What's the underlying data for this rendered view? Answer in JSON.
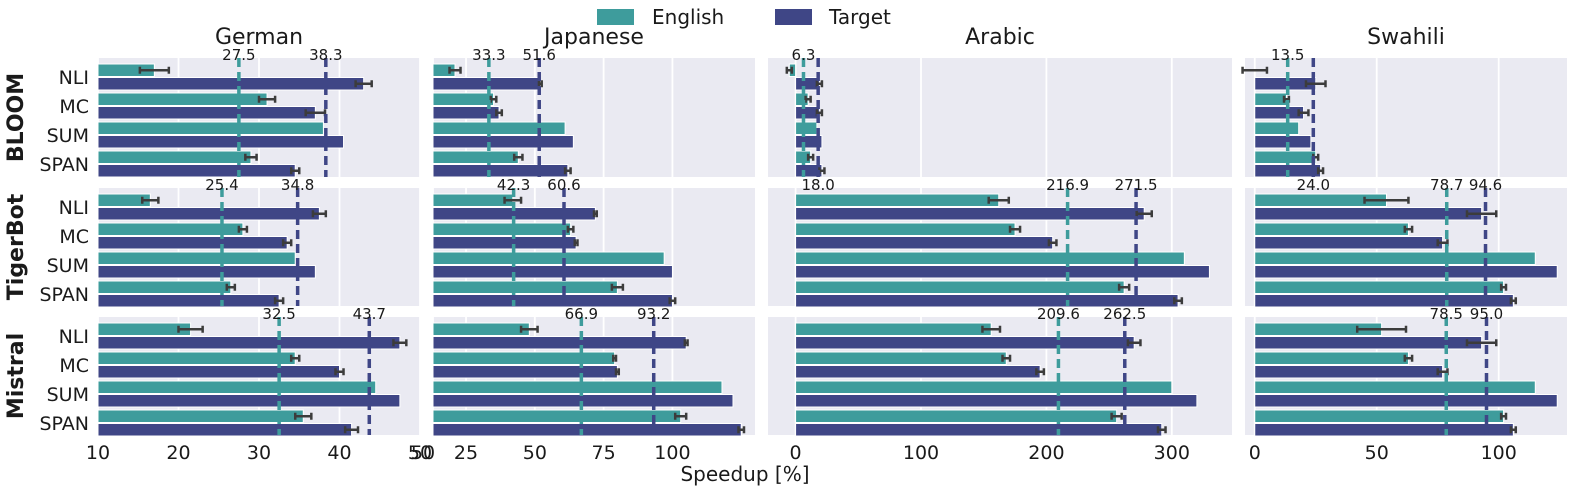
{
  "legend": {
    "items": [
      {
        "label": "English",
        "color": "#3e9c9c"
      },
      {
        "label": "Target",
        "color": "#3f4686"
      }
    ],
    "placement": "top-center"
  },
  "xlabel": "Speedup [%]",
  "chart_data": {
    "type": "bar",
    "orientation": "horizontal",
    "grid": true,
    "xlabel": "Speedup [%]",
    "series_names": [
      "English",
      "Target"
    ],
    "languages": [
      "German",
      "Japanese",
      "Arabic",
      "Swahili"
    ],
    "models": [
      "BLOOM",
      "TigerBot",
      "Mistral"
    ],
    "tasks": [
      "NLI",
      "MC",
      "SUM",
      "SPAN"
    ],
    "xlim": {
      "German": [
        10,
        50
      ],
      "Japanese": [
        13,
        130
      ],
      "Arabic": [
        -22,
        348
      ],
      "Swahili": [
        -4,
        128
      ]
    },
    "xticks": {
      "German": [
        10,
        20,
        30,
        40,
        50
      ],
      "Japanese": [
        50,
        25,
        50,
        75,
        100
      ],
      "Arabic": [
        0,
        100,
        200,
        300
      ],
      "Swahili": [
        0,
        50,
        100
      ]
    },
    "xticklabels": {
      "German": [
        "10",
        "20",
        "30",
        "40",
        "50"
      ],
      "Japanese": [
        "50",
        "25",
        "50",
        "75",
        "100"
      ],
      "Arabic": [
        "0",
        "100",
        "200",
        "300"
      ],
      "Swahili": [
        "0",
        "50",
        "100"
      ]
    },
    "panels": [
      {
        "model": "BLOOM",
        "language": "German",
        "english": [
          {
            "value": 17,
            "err": 1.8
          },
          {
            "value": 31,
            "err": 1.0
          },
          {
            "value": 38,
            "err": 0
          },
          {
            "value": 29,
            "err": 0.7
          }
        ],
        "target": [
          {
            "value": 43,
            "err": 1.0
          },
          {
            "value": 37,
            "err": 1.2
          },
          {
            "value": 40.5,
            "err": 0
          },
          {
            "value": 34.5,
            "err": 0.5
          }
        ],
        "mean_english": 27.5,
        "mean_target": 38.3,
        "mean_english_label": "27.5",
        "mean_target_label": "38.3"
      },
      {
        "model": "BLOOM",
        "language": "Japanese",
        "english": [
          {
            "value": 21,
            "err": 2
          },
          {
            "value": 35,
            "err": 1
          },
          {
            "value": 61,
            "err": 0
          },
          {
            "value": 44,
            "err": 1.5
          }
        ],
        "target": [
          {
            "value": 52,
            "err": 0.5
          },
          {
            "value": 37,
            "err": 1.0
          },
          {
            "value": 64,
            "err": 0
          },
          {
            "value": 62,
            "err": 1.0
          }
        ],
        "mean_english": 33.3,
        "mean_target": 51.6,
        "mean_english_label": "33.3",
        "mean_target_label": "51.6"
      },
      {
        "model": "BLOOM",
        "language": "Arabic",
        "english": [
          {
            "value": -5,
            "err": 2
          },
          {
            "value": 10,
            "err": 2
          },
          {
            "value": 17,
            "err": 0
          },
          {
            "value": 12,
            "err": 2
          }
        ],
        "target": [
          {
            "value": 19,
            "err": 2
          },
          {
            "value": 19,
            "err": 2
          },
          {
            "value": 21,
            "err": 0
          },
          {
            "value": 21,
            "err": 2
          }
        ],
        "mean_english": 6.3,
        "mean_target": 18.0,
        "mean_english_label": "6.3",
        "mean_target_label": ""
      },
      {
        "model": "BLOOM",
        "language": "Swahili",
        "english": [
          {
            "value": 0,
            "err": 5
          },
          {
            "value": 13,
            "err": 1
          },
          {
            "value": 18,
            "err": 0
          },
          {
            "value": 25,
            "err": 1
          }
        ],
        "target": [
          {
            "value": 25,
            "err": 4
          },
          {
            "value": 20,
            "err": 2
          },
          {
            "value": 23,
            "err": 0
          },
          {
            "value": 27,
            "err": 1
          }
        ],
        "mean_english": 13.5,
        "mean_target": 24.0,
        "mean_english_label": "13.5",
        "mean_target_label": ""
      },
      {
        "model": "TigerBot",
        "language": "German",
        "english": [
          {
            "value": 16.5,
            "err": 1.0
          },
          {
            "value": 28,
            "err": 0.5
          },
          {
            "value": 34.5,
            "err": 0
          },
          {
            "value": 26.5,
            "err": 0.5
          }
        ],
        "target": [
          {
            "value": 37.5,
            "err": 0.8
          },
          {
            "value": 33.5,
            "err": 0.5
          },
          {
            "value": 37,
            "err": 0
          },
          {
            "value": 32.5,
            "err": 0.5
          }
        ],
        "mean_english": 25.4,
        "mean_target": 34.8,
        "mean_english_label": "25.4",
        "mean_target_label": "34.8"
      },
      {
        "model": "TigerBot",
        "language": "Japanese",
        "english": [
          {
            "value": 42,
            "err": 3
          },
          {
            "value": 63,
            "err": 1
          },
          {
            "value": 97,
            "err": 0
          },
          {
            "value": 80,
            "err": 2
          }
        ],
        "target": [
          {
            "value": 72,
            "err": 0.5
          },
          {
            "value": 65,
            "err": 0.5
          },
          {
            "value": 100,
            "err": 0
          },
          {
            "value": 100,
            "err": 1
          }
        ],
        "mean_english": 42.3,
        "mean_target": 60.6,
        "mean_english_label": "42.3",
        "mean_target_label": "60.6"
      },
      {
        "model": "TigerBot",
        "language": "Arabic",
        "english": [
          {
            "value": 162,
            "err": 8
          },
          {
            "value": 175,
            "err": 4
          },
          {
            "value": 310,
            "err": 0
          },
          {
            "value": 262,
            "err": 4
          }
        ],
        "target": [
          {
            "value": 278,
            "err": 6
          },
          {
            "value": 205,
            "err": 3
          },
          {
            "value": 330,
            "err": 0
          },
          {
            "value": 305,
            "err": 3
          }
        ],
        "mean_english": 216.9,
        "mean_target": 271.5,
        "mean_english_label": "216.9",
        "mean_target_label": "271.5"
      },
      {
        "model": "TigerBot",
        "language": "Swahili",
        "english": [
          {
            "value": 54,
            "err": 9
          },
          {
            "value": 63,
            "err": 1.5
          },
          {
            "value": 115,
            "err": 0
          },
          {
            "value": 102,
            "err": 1
          }
        ],
        "target": [
          {
            "value": 93,
            "err": 6
          },
          {
            "value": 77,
            "err": 2
          },
          {
            "value": 124,
            "err": 0
          },
          {
            "value": 106,
            "err": 1
          }
        ],
        "mean_english": 78.7,
        "mean_target": 94.6,
        "mean_english_label": "78.7",
        "mean_target_label": "94.6"
      },
      {
        "model": "Mistral",
        "language": "German",
        "english": [
          {
            "value": 21.5,
            "err": 1.5
          },
          {
            "value": 34.5,
            "err": 0.5
          },
          {
            "value": 44.5,
            "err": 0
          },
          {
            "value": 35.5,
            "err": 1.0
          }
        ],
        "target": [
          {
            "value": 47.5,
            "err": 0.8
          },
          {
            "value": 40.0,
            "err": 0.5
          },
          {
            "value": 47.5,
            "err": 0
          },
          {
            "value": 41.5,
            "err": 0.8
          }
        ],
        "mean_english": 32.5,
        "mean_target": 43.7,
        "mean_english_label": "32.5",
        "mean_target_label": "43.7"
      },
      {
        "model": "Mistral",
        "language": "Japanese",
        "english": [
          {
            "value": 48,
            "err": 3
          },
          {
            "value": 79,
            "err": 0.5
          },
          {
            "value": 118,
            "err": 0
          },
          {
            "value": 103,
            "err": 2
          }
        ],
        "target": [
          {
            "value": 105,
            "err": 0.5
          },
          {
            "value": 80,
            "err": 0.5
          },
          {
            "value": 122,
            "err": 0
          },
          {
            "value": 125,
            "err": 1
          }
        ],
        "mean_english": 66.9,
        "mean_target": 93.2,
        "mean_english_label": "66.9",
        "mean_target_label": "93.2"
      },
      {
        "model": "Mistral",
        "language": "Arabic",
        "english": [
          {
            "value": 156,
            "err": 7
          },
          {
            "value": 168,
            "err": 3
          },
          {
            "value": 300,
            "err": 0
          },
          {
            "value": 256,
            "err": 4
          }
        ],
        "target": [
          {
            "value": 270,
            "err": 5
          },
          {
            "value": 195,
            "err": 3
          },
          {
            "value": 320,
            "err": 0
          },
          {
            "value": 292,
            "err": 3
          }
        ],
        "mean_english": 209.6,
        "mean_target": 262.5,
        "mean_english_label": "209.6",
        "mean_target_label": "262.5"
      },
      {
        "model": "Mistral",
        "language": "Swahili",
        "english": [
          {
            "value": 52,
            "err": 10
          },
          {
            "value": 63,
            "err": 1.5
          },
          {
            "value": 115,
            "err": 0
          },
          {
            "value": 102,
            "err": 1
          }
        ],
        "target": [
          {
            "value": 93,
            "err": 6
          },
          {
            "value": 77,
            "err": 2
          },
          {
            "value": 124,
            "err": 0
          },
          {
            "value": 106,
            "err": 1
          }
        ],
        "mean_english": 78.5,
        "mean_target": 95.0,
        "mean_english_label": "78.5",
        "mean_target_label": "95.0"
      }
    ],
    "extra_label": {
      "text": "18.0",
      "row": "TigerBot",
      "language": "Arabic"
    },
    "extra_label_sw": {
      "text": "24.0",
      "row": "TigerBot",
      "language": "Swahili"
    }
  }
}
